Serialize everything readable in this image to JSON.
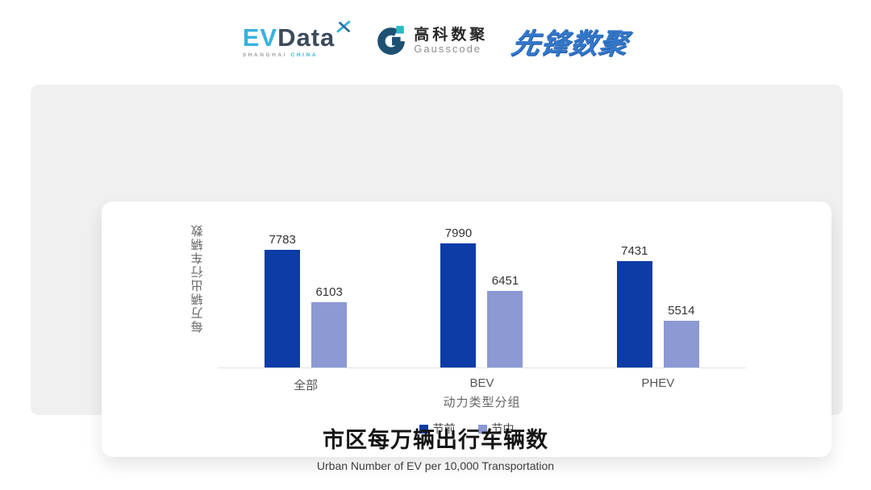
{
  "header": {
    "evdata_logo": {
      "ev": "EV",
      "data": "Data",
      "sub_left": "SHANGHAI",
      "sub_right": "CHINA"
    },
    "gausscode_logo": {
      "cn": "高科数聚",
      "en": "Gausscode"
    },
    "pioneer_logo": {
      "text": "先锋数聚"
    }
  },
  "chart_data": {
    "type": "bar",
    "title": "市区每万辆出行车辆数",
    "categories": [
      "全部",
      "BEV",
      "PHEV"
    ],
    "series": [
      {
        "name": "节前",
        "color": "#0d3ca6",
        "values": [
          7783,
          7990,
          7431
        ]
      },
      {
        "name": "节中",
        "color": "#8c99d3",
        "values": [
          6103,
          6451,
          5514
        ]
      }
    ],
    "xlabel": "动力类型分组",
    "ylabel": "每万辆出行车辆数",
    "ylim": [
      4000,
      8200
    ],
    "grid": false,
    "legend_position": "bottom",
    "value_labels": true
  },
  "footer": {
    "title": "市区每万辆出行车辆数",
    "subtitle": "Urban Number of EV per 10,000 Transportation"
  },
  "colors": {
    "series_pre_holiday": "#0d3ca6",
    "series_mid_holiday": "#8c99d3",
    "panel_bg": "#f0f0f1",
    "card_bg": "#ffffff",
    "axis_line": "#e2e2e2",
    "evdata_cyan": "#38b2dc",
    "evdata_navy": "#3d4a5c",
    "gauss_navy": "#1d5174",
    "gauss_teal": "#2cb8c4",
    "pioneer_blue": "#3377c8"
  }
}
